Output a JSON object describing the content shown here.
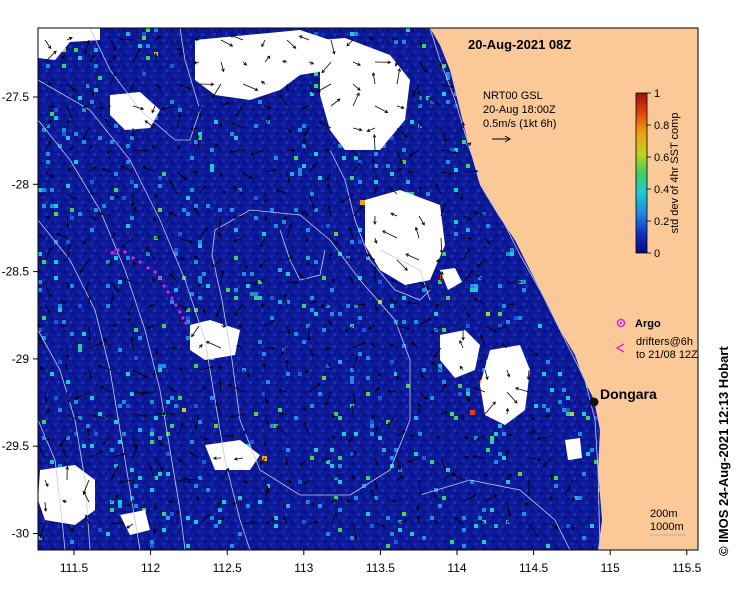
{
  "title": "20-Aug-2021 08Z",
  "credit": "© IMOS 24-Aug-2021 12:13 Hobart",
  "current_legend": {
    "line1": "NRT00 GSL",
    "line2": "20-Aug 18:00Z",
    "line3": "0.5m/s (1kt 6h)"
  },
  "colorbar": {
    "label": "std dev of 4hr SST comp",
    "ticks": [
      "1",
      "0.8",
      "0.6",
      "0.4",
      "0.2",
      "0"
    ],
    "colors": [
      "#08087a",
      "#1030c8",
      "#1e8ce0",
      "#20c8d0",
      "#40d060",
      "#c0d020",
      "#f0a010",
      "#e04010",
      "#a01010"
    ]
  },
  "legend": {
    "argo": "Argo",
    "drifters_line1": "drifters@6h",
    "drifters_line2": "to 21/08 12Z"
  },
  "place": {
    "name": "Dongara"
  },
  "contour_key": {
    "line1": "200m",
    "line2": "1000m"
  },
  "axes": {
    "x_ticks": [
      "111.5",
      "112",
      "112.5",
      "113",
      "113.5",
      "114",
      "114.5",
      "115",
      "115.5"
    ],
    "y_ticks": [
      "-27.5",
      "-28",
      "-28.5",
      "-29",
      "-29.5",
      "-30"
    ]
  },
  "colors": {
    "ocean": "#0c1a9a",
    "land": "#fbc898",
    "cloud": "#ffffff",
    "drifter": "#e020e0"
  }
}
